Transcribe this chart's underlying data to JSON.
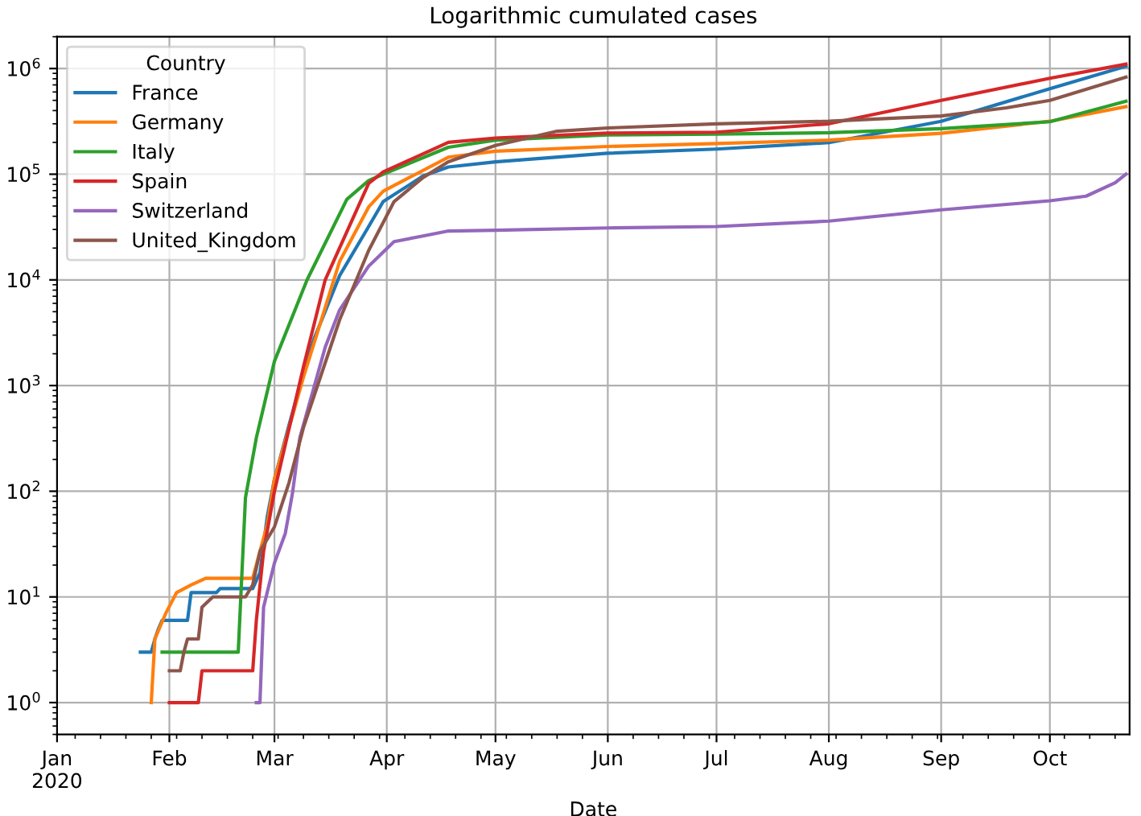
{
  "chart_data": {
    "type": "line",
    "title": "Logarithmic cumulated cases",
    "xlabel": "Date",
    "legend_title": "Country",
    "legend": "top left",
    "grid": true,
    "log": "y",
    "line_style": "solid",
    "xlim": [
      "2020-01-01",
      "2020-10-23"
    ],
    "ylim": [
      0.5,
      2000000
    ],
    "xticks": [
      {
        "value": "2020-01-01",
        "label": "Jan\n2020"
      },
      {
        "value": "2020-02-01",
        "label": "Feb"
      },
      {
        "value": "2020-03-01",
        "label": "Mar"
      },
      {
        "value": "2020-04-01",
        "label": "Apr"
      },
      {
        "value": "2020-05-01",
        "label": "May"
      },
      {
        "value": "2020-06-01",
        "label": "Jun"
      },
      {
        "value": "2020-07-01",
        "label": "Jul"
      },
      {
        "value": "2020-08-01",
        "label": "Aug"
      },
      {
        "value": "2020-09-01",
        "label": "Sep"
      },
      {
        "value": "2020-10-01",
        "label": "Oct"
      }
    ],
    "yticks": [
      {
        "value": 1,
        "label": "10$^{0}$"
      },
      {
        "value": 10,
        "label": "10$^{1}$"
      },
      {
        "value": 100,
        "label": "10$^{2}$"
      },
      {
        "value": 1000,
        "label": "10$^{3}$"
      },
      {
        "value": 10000,
        "label": "10$^{4}$"
      },
      {
        "value": 100000,
        "label": "10$^{5}$"
      },
      {
        "value": 1000000,
        "label": "10$^{6}$"
      }
    ],
    "series": [
      {
        "name": "France",
        "color": "#1f77b4",
        "x": [
          "2020-01-24",
          "2020-01-27",
          "2020-01-28",
          "2020-01-29",
          "2020-01-30",
          "2020-02-06",
          "2020-02-07",
          "2020-02-14",
          "2020-02-15",
          "2020-02-24",
          "2020-02-26",
          "2020-02-28",
          "2020-03-01",
          "2020-03-05",
          "2020-03-09",
          "2020-03-12",
          "2020-03-19",
          "2020-03-27",
          "2020-03-31",
          "2020-04-11",
          "2020-04-18",
          "2020-05-01",
          "2020-06-01",
          "2020-07-01",
          "2020-08-01",
          "2020-09-01",
          "2020-10-01",
          "2020-10-22"
        ],
        "values": [
          3,
          3,
          4,
          5,
          6,
          6,
          11,
          11,
          12,
          12,
          17,
          57,
          130,
          420,
          1300,
          2800,
          11000,
          32000,
          55000,
          96000,
          117000,
          131000,
          158000,
          173000,
          199000,
          317000,
          645000,
          1050000
        ]
      },
      {
        "name": "Germany",
        "color": "#ff7f0e",
        "x": [
          "2020-01-27",
          "2020-01-28",
          "2020-01-31",
          "2020-02-03",
          "2020-02-07",
          "2020-02-11",
          "2020-02-24",
          "2020-02-26",
          "2020-02-28",
          "2020-03-01",
          "2020-03-09",
          "2020-03-19",
          "2020-03-27",
          "2020-03-31",
          "2020-04-18",
          "2020-05-01",
          "2020-06-01",
          "2020-07-01",
          "2020-08-01",
          "2020-09-01",
          "2020-10-01",
          "2020-10-22"
        ],
        "values": [
          1,
          4,
          7,
          11,
          13,
          15,
          15,
          27,
          48,
          130,
          1200,
          15000,
          49000,
          69000,
          145000,
          165000,
          183000,
          195000,
          210000,
          244000,
          317000,
          436000
        ]
      },
      {
        "name": "Italy",
        "color": "#2ca02c",
        "x": [
          "2020-01-30",
          "2020-02-20",
          "2020-02-22",
          "2020-02-25",
          "2020-03-01",
          "2020-03-10",
          "2020-03-21",
          "2020-03-27",
          "2020-03-31",
          "2020-04-18",
          "2020-05-01",
          "2020-06-01",
          "2020-07-01",
          "2020-08-01",
          "2020-09-01",
          "2020-10-01",
          "2020-10-22"
        ],
        "values": [
          3,
          3,
          87,
          320,
          1700,
          10000,
          58000,
          87000,
          100000,
          180000,
          210000,
          235000,
          240000,
          247000,
          270000,
          314000,
          490000
        ]
      },
      {
        "name": "Spain",
        "color": "#d62728",
        "x": [
          "2020-02-01",
          "2020-02-09",
          "2020-02-10",
          "2020-02-24",
          "2020-02-25",
          "2020-02-27",
          "2020-03-01",
          "2020-03-09",
          "2020-03-15",
          "2020-03-27",
          "2020-03-31",
          "2020-04-18",
          "2020-05-01",
          "2020-06-01",
          "2020-07-01",
          "2020-08-01",
          "2020-09-01",
          "2020-10-01",
          "2020-10-22"
        ],
        "values": [
          1,
          1,
          2,
          2,
          6,
          27,
          100,
          1500,
          10000,
          82000,
          105000,
          200000,
          220000,
          245000,
          250000,
          300000,
          500000,
          810000,
          1100000
        ]
      },
      {
        "name": "Switzerland",
        "color": "#9467bd",
        "x": [
          "2020-02-25",
          "2020-02-26",
          "2020-02-27",
          "2020-03-01",
          "2020-03-04",
          "2020-03-06",
          "2020-03-08",
          "2020-03-15",
          "2020-03-19",
          "2020-03-27",
          "2020-04-03",
          "2020-04-11",
          "2020-04-18",
          "2020-05-01",
          "2020-06-01",
          "2020-07-01",
          "2020-08-01",
          "2020-09-01",
          "2020-10-01",
          "2020-10-11",
          "2020-10-19",
          "2020-10-22"
        ],
        "values": [
          1,
          1,
          8,
          21,
          40,
          97,
          320,
          2300,
          5200,
          13500,
          23000,
          26000,
          29000,
          29500,
          31000,
          32000,
          36000,
          46000,
          56000,
          62000,
          83000,
          100000
        ]
      },
      {
        "name": "United_Kingdom",
        "color": "#8c564b",
        "x": [
          "2020-02-01",
          "2020-02-04",
          "2020-02-05",
          "2020-02-06",
          "2020-02-09",
          "2020-02-10",
          "2020-02-13",
          "2020-02-22",
          "2020-02-24",
          "2020-02-26",
          "2020-03-01",
          "2020-03-05",
          "2020-03-09",
          "2020-03-19",
          "2020-03-27",
          "2020-04-03",
          "2020-04-11",
          "2020-04-18",
          "2020-05-01",
          "2020-05-18",
          "2020-06-01",
          "2020-07-01",
          "2020-08-01",
          "2020-09-01",
          "2020-09-19",
          "2020-10-01",
          "2020-10-22"
        ],
        "values": [
          2,
          2,
          3,
          4,
          4,
          8,
          10,
          10,
          13,
          27,
          46,
          120,
          400,
          4200,
          19000,
          55000,
          93000,
          131000,
          187000,
          255000,
          274000,
          300000,
          317000,
          356000,
          425000,
          500000,
          830000
        ]
      }
    ]
  }
}
